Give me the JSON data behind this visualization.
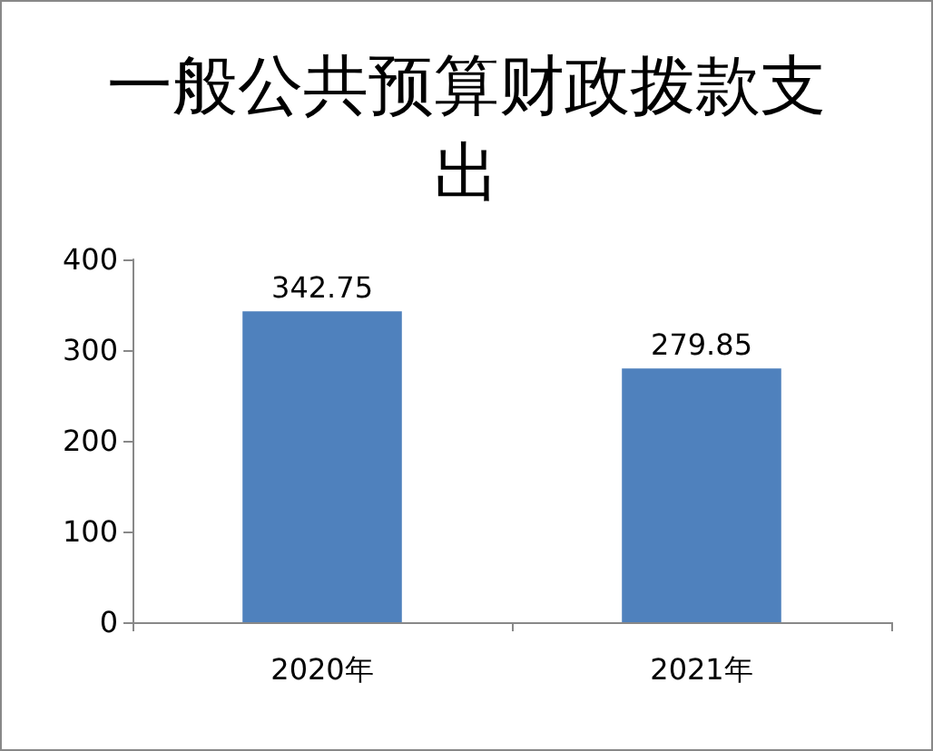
{
  "chart_data": {
    "type": "bar",
    "title": "一般公共预算财政拨款支出",
    "categories": [
      "2020年",
      "2021年"
    ],
    "values": [
      342.75,
      279.85
    ],
    "color": "#4f81bd",
    "ylim": [
      0,
      400
    ],
    "yticks": [
      0,
      100,
      200,
      300,
      400
    ],
    "grid": false,
    "data_labels": true
  }
}
